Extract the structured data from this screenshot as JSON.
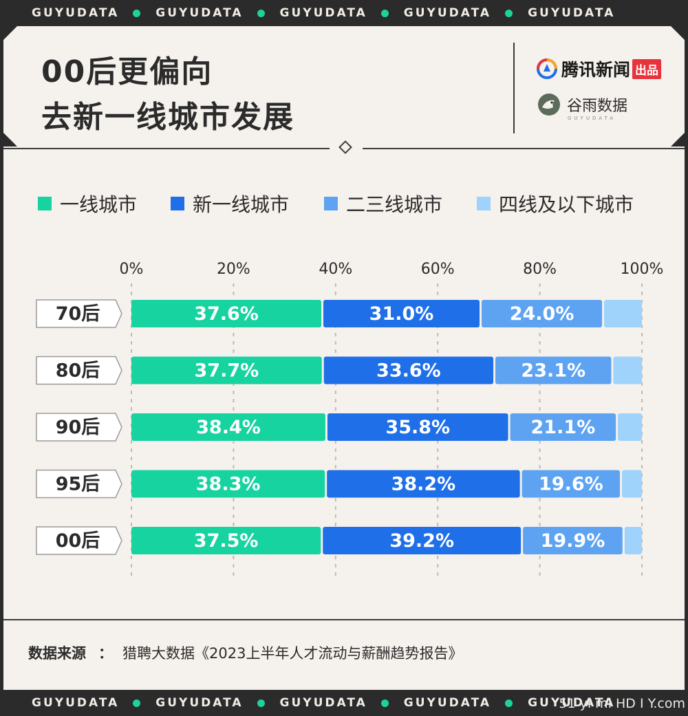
{
  "ticker": {
    "text": "GUYUDATA",
    "repeat": 5
  },
  "header": {
    "title_lines": [
      "00后更偏向",
      "去新一线城市发展"
    ],
    "brand1": "腾讯新闻",
    "brand1_tag": "出品",
    "brand2": "谷雨数据",
    "brand2_sub": "GUYUDATA"
  },
  "legend": [
    {
      "label": "一线城市",
      "color": "#16d3a0"
    },
    {
      "label": "新一线城市",
      "color": "#1f6fe8"
    },
    {
      "label": "二三线城市",
      "color": "#5ea3f2"
    },
    {
      "label": "四线及以下城市",
      "color": "#9fd3fb"
    }
  ],
  "chart_data": {
    "type": "bar",
    "orientation": "horizontal",
    "stacked": true,
    "categories": [
      "70后",
      "80后",
      "90后",
      "95后",
      "00后"
    ],
    "series": [
      {
        "name": "一线城市",
        "color": "#16d3a0",
        "values": [
          37.6,
          37.7,
          38.4,
          38.3,
          37.5
        ]
      },
      {
        "name": "新一线城市",
        "color": "#1f6fe8",
        "values": [
          31.0,
          33.6,
          35.8,
          38.2,
          39.2
        ]
      },
      {
        "name": "二三线城市",
        "color": "#5ea3f2",
        "values": [
          24.0,
          23.1,
          21.1,
          19.6,
          19.9
        ]
      },
      {
        "name": "四线及以下城市",
        "color": "#9fd3fb",
        "values": [
          7.4,
          5.6,
          4.7,
          3.9,
          3.4
        ]
      }
    ],
    "data_labels": [
      [
        "37.6%",
        "31.0%",
        "24.0%",
        ""
      ],
      [
        "37.7%",
        "33.6%",
        "23.1%",
        ""
      ],
      [
        "38.4%",
        "35.8%",
        "21.1%",
        ""
      ],
      [
        "38.3%",
        "38.2%",
        "19.6%",
        ""
      ],
      [
        "37.5%",
        "39.2%",
        "19.9%",
        ""
      ]
    ],
    "xticks": [
      "0%",
      "20%",
      "40%",
      "60%",
      "80%",
      "100%"
    ],
    "xlim": [
      0,
      100
    ],
    "grid": true,
    "legend_position": "top"
  },
  "source": {
    "label": "数据来源",
    "colon": "：",
    "text": "猎聘大数据《2023上半年人才流动与薪酬趋势报告》"
  },
  "watermark": "51 yi mi HD I Y.com"
}
